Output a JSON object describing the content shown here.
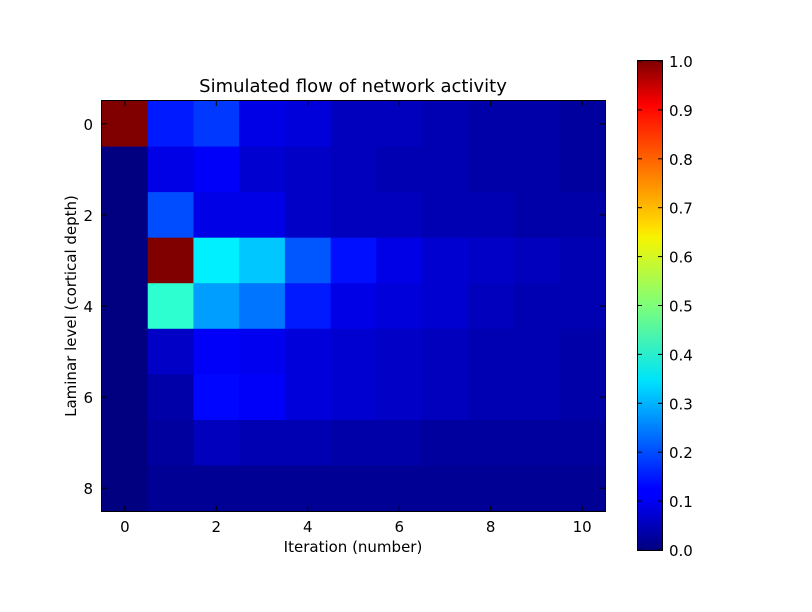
{
  "chart_data": {
    "type": "heatmap",
    "title": "Simulated flow of network activity",
    "xlabel": "Iteration (number)",
    "ylabel": "Laminar level (cortical depth)",
    "x": [
      0,
      1,
      2,
      3,
      4,
      5,
      6,
      7,
      8,
      9,
      10
    ],
    "y": [
      0,
      1,
      2,
      3,
      4,
      5,
      6,
      7,
      8
    ],
    "xticks": [
      0,
      2,
      4,
      6,
      8,
      10
    ],
    "yticks": [
      0,
      2,
      4,
      6,
      8
    ],
    "xlim": [
      -0.5,
      10.5
    ],
    "ylim": [
      8.5,
      -0.5
    ],
    "values": [
      [
        1.0,
        0.15,
        0.18,
        0.1,
        0.09,
        0.06,
        0.06,
        0.05,
        0.04,
        0.04,
        0.03
      ],
      [
        0.0,
        0.1,
        0.12,
        0.08,
        0.07,
        0.06,
        0.05,
        0.05,
        0.04,
        0.04,
        0.03
      ],
      [
        0.0,
        0.2,
        0.1,
        0.1,
        0.07,
        0.06,
        0.06,
        0.05,
        0.05,
        0.04,
        0.04
      ],
      [
        0.0,
        1.0,
        0.36,
        0.32,
        0.21,
        0.14,
        0.1,
        0.08,
        0.07,
        0.06,
        0.05
      ],
      [
        0.0,
        0.42,
        0.28,
        0.24,
        0.15,
        0.1,
        0.09,
        0.08,
        0.06,
        0.05,
        0.05
      ],
      [
        0.0,
        0.07,
        0.12,
        0.11,
        0.09,
        0.08,
        0.07,
        0.06,
        0.05,
        0.05,
        0.04
      ],
      [
        0.0,
        0.04,
        0.13,
        0.12,
        0.09,
        0.08,
        0.07,
        0.06,
        0.05,
        0.05,
        0.04
      ],
      [
        0.0,
        0.03,
        0.06,
        0.05,
        0.05,
        0.04,
        0.04,
        0.03,
        0.03,
        0.03,
        0.03
      ],
      [
        0.0,
        0.02,
        0.02,
        0.02,
        0.02,
        0.02,
        0.02,
        0.02,
        0.02,
        0.02,
        0.02
      ]
    ],
    "vmin": 0.0,
    "vmax": 1.0,
    "colormap": "jet",
    "colorbar_ticks": [
      "0.0",
      "0.1",
      "0.2",
      "0.3",
      "0.4",
      "0.5",
      "0.6",
      "0.7",
      "0.8",
      "0.9",
      "1.0"
    ],
    "grid": false,
    "legend": "colorbar-right"
  }
}
